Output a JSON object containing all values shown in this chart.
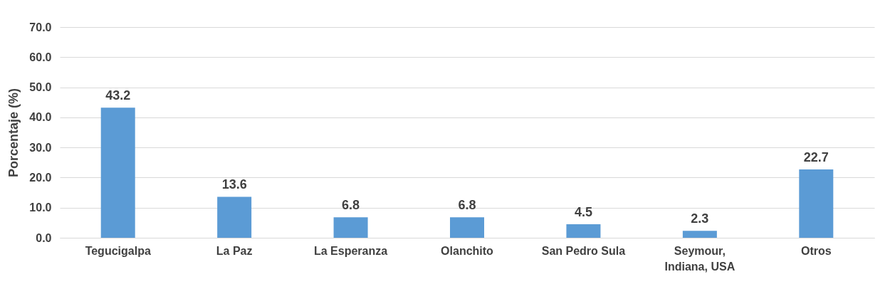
{
  "chart_data": {
    "type": "bar",
    "ylabel": "Porcentaje (%)",
    "categories": [
      "Tegucigalpa",
      "La Paz",
      "La Esperanza",
      "Olanchito",
      "San Pedro Sula",
      "Seymour, Indiana, USA",
      "Otros"
    ],
    "values": [
      43.2,
      13.6,
      6.8,
      6.8,
      4.5,
      2.3,
      22.7
    ],
    "color": "#5b9bd5",
    "ylim": [
      0,
      70
    ],
    "yticks": [
      {
        "value": 0,
        "label": "0.0"
      },
      {
        "value": 10,
        "label": "10.0"
      },
      {
        "value": 20,
        "label": "20.0"
      },
      {
        "value": 30,
        "label": "30.0"
      },
      {
        "value": 40,
        "label": "40.0"
      },
      {
        "value": 50,
        "label": "50.0"
      },
      {
        "value": 60,
        "label": "60.0"
      },
      {
        "value": 70,
        "label": "70.0"
      }
    ],
    "grid": "y",
    "data_labels": true
  }
}
